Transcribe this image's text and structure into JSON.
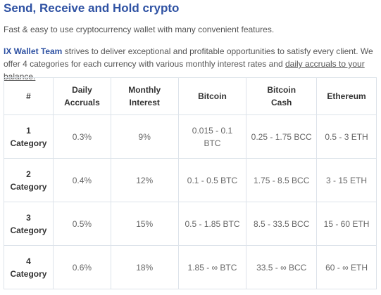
{
  "header": {
    "title": "Send, Receive and Hold crypto",
    "subtitle": "Fast & easy to use cryptocurrency wallet with many convenient features."
  },
  "intro": {
    "bold": "IX Wallet Team",
    "text": "strives to deliver exceptional and profitable opportunities to satisfy every client. We offer 4 categories for each currency with various monthly interest rates and",
    "link": "daily accruals to your balance."
  },
  "table": {
    "columns": [
      "#",
      "Daily Accruals",
      "Monthly Interest",
      "Bitcoin",
      "Bitcoin Cash",
      "Ethereum"
    ],
    "rows": [
      [
        "1 Category",
        "0.3%",
        "9%",
        "0.015 - 0.1 BTC",
        "0.25 - 1.75 BCC",
        "0.5 - 3 ETH"
      ],
      [
        "2 Category",
        "0.4%",
        "12%",
        "0.1 - 0.5 BTC",
        "1.75 - 8.5 BCC",
        "3 - 15 ETH"
      ],
      [
        "3 Category",
        "0.5%",
        "15%",
        "0.5 - 1.85 BTC",
        "8.5 - 33.5 BCC",
        "15 - 60 ETH"
      ],
      [
        "4 Category",
        "0.6%",
        "18%",
        "1.85 - ∞ BTC",
        "33.5 - ∞ BCC",
        "60 - ∞ ETH"
      ]
    ]
  }
}
